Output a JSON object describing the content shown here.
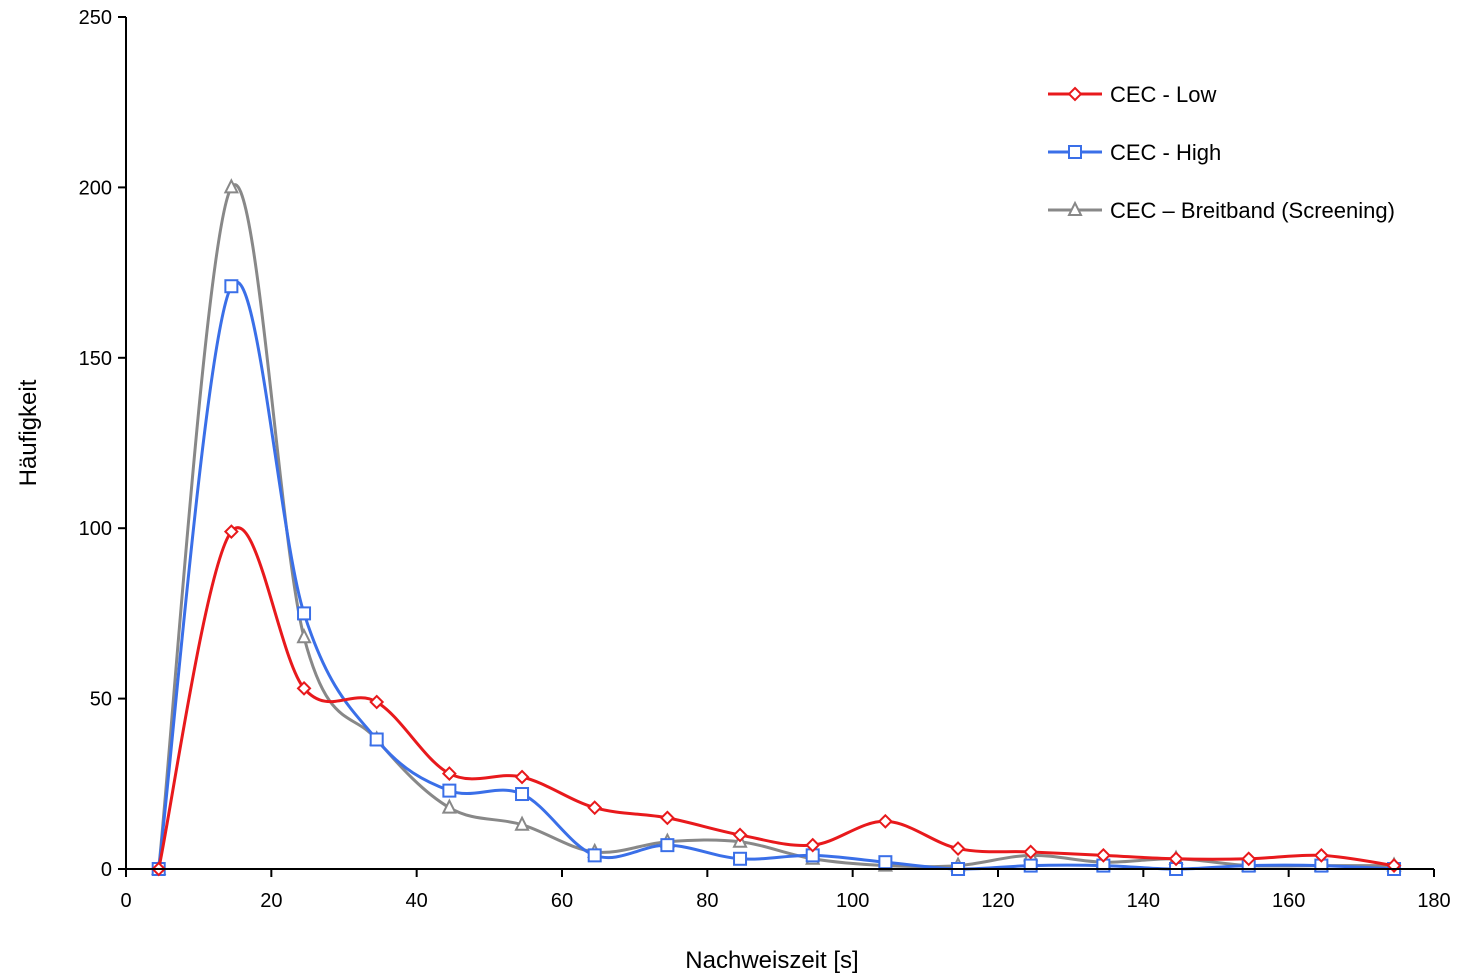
{
  "chart_data": {
    "type": "line",
    "xlabel": "Nachweiszeit [s]",
    "ylabel": "Häufigkeit",
    "xlim": [
      0,
      180
    ],
    "ylim": [
      0,
      250
    ],
    "xticks": [
      0,
      20,
      40,
      60,
      80,
      100,
      120,
      140,
      160,
      180
    ],
    "yticks": [
      0,
      50,
      100,
      150,
      200,
      250
    ],
    "grid": false,
    "legend_position": "top-right",
    "x": [
      4.5,
      14.5,
      24.5,
      34.5,
      44.5,
      54.5,
      64.5,
      74.5,
      84.5,
      94.5,
      104.5,
      114.5,
      124.5,
      134.5,
      144.5,
      154.5,
      164.5,
      174.5
    ],
    "series": [
      {
        "name": "CEC - Low",
        "color": "#e8191c",
        "marker": "diamond",
        "values": [
          0,
          99,
          53,
          49,
          28,
          27,
          18,
          15,
          10,
          7,
          14,
          6,
          5,
          4,
          3,
          3,
          4,
          1
        ]
      },
      {
        "name": "CEC - High",
        "color": "#3a6fe8",
        "marker": "square",
        "values": [
          0,
          171,
          75,
          38,
          23,
          22,
          4,
          7,
          3,
          4,
          2,
          0,
          1,
          1,
          0,
          1,
          1,
          0
        ]
      },
      {
        "name": "CEC – Breitband (Screening)",
        "color": "#888888",
        "marker": "triangle",
        "values": [
          0,
          200,
          68,
          38,
          18,
          13,
          5,
          8,
          8,
          3,
          1,
          1,
          4,
          2,
          3,
          1,
          1,
          1
        ]
      }
    ]
  }
}
